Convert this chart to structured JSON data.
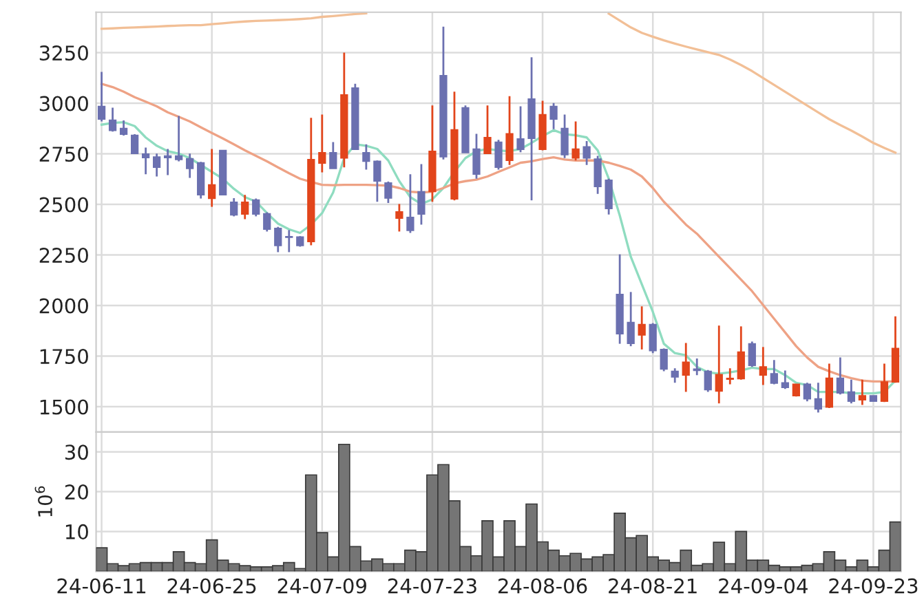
{
  "chart_data": [
    {
      "type": "candlestick",
      "grid": true,
      "ylim": [
        1375,
        3450
      ],
      "yticks": [
        1500,
        1750,
        2000,
        2250,
        2500,
        2750,
        3000,
        3250
      ],
      "categories": [
        null,
        null,
        null,
        null,
        null,
        null,
        null,
        null,
        null,
        null,
        null,
        null,
        null,
        null,
        null,
        null,
        null,
        null,
        null,
        null,
        null,
        null,
        null,
        null,
        null,
        null,
        null,
        null,
        null,
        null,
        null,
        null,
        null,
        null,
        null,
        null,
        null,
        null,
        null,
        null,
        null,
        null,
        null,
        null,
        null,
        null,
        null,
        null,
        null,
        null,
        null,
        null,
        null,
        null,
        null,
        null,
        null,
        null,
        null,
        null,
        null,
        null,
        null,
        null,
        null,
        null,
        null,
        null,
        null,
        null,
        null,
        null,
        null
      ],
      "ohlc": [
        [
          2985,
          3155,
          2910,
          2921
        ],
        [
          2917,
          2978,
          2860,
          2865
        ],
        [
          2876,
          2915,
          2840,
          2847
        ],
        [
          2842,
          2847,
          2749,
          2751
        ],
        [
          2749,
          2781,
          2649,
          2731
        ],
        [
          2735,
          2751,
          2638,
          2683
        ],
        [
          2740,
          2774,
          2645,
          2731
        ],
        [
          2740,
          2937,
          2713,
          2722
        ],
        [
          2726,
          2751,
          2631,
          2677
        ],
        [
          2706,
          2710,
          2529,
          2547
        ],
        [
          2529,
          2774,
          2488,
          2597
        ],
        [
          2767,
          2767,
          2547,
          2547
        ],
        [
          2511,
          2531,
          2441,
          2448
        ],
        [
          2452,
          2547,
          2427,
          2511
        ],
        [
          2522,
          2529,
          2441,
          2452
        ],
        [
          2454,
          2461,
          2366,
          2377
        ],
        [
          2382,
          2389,
          2264,
          2296
        ],
        [
          2341,
          2373,
          2264,
          2337
        ],
        [
          2339,
          2343,
          2291,
          2296
        ],
        [
          2316,
          2928,
          2298,
          2722
        ],
        [
          2704,
          2944,
          2658,
          2756
        ],
        [
          2756,
          2808,
          2677,
          2677
        ],
        [
          2729,
          3250,
          2683,
          3042
        ],
        [
          3076,
          3096,
          2772,
          2772
        ],
        [
          2756,
          2797,
          2672,
          2713
        ],
        [
          2713,
          2717,
          2513,
          2615
        ],
        [
          2606,
          2613,
          2507,
          2531
        ],
        [
          2432,
          2502,
          2366,
          2463
        ],
        [
          2436,
          2649,
          2359,
          2371
        ],
        [
          2563,
          2699,
          2400,
          2452
        ],
        [
          2563,
          2989,
          2513,
          2763
        ],
        [
          3137,
          3379,
          2722,
          2735
        ],
        [
          2527,
          3057,
          2520,
          2869
        ],
        [
          2978,
          2989,
          2756,
          2756
        ],
        [
          2774,
          2849,
          2627,
          2649
        ],
        [
          2751,
          2989,
          2751,
          2831
        ],
        [
          2808,
          2819,
          2672,
          2683
        ],
        [
          2717,
          3035,
          2695,
          2849
        ],
        [
          2824,
          2985,
          2758,
          2772
        ],
        [
          3021,
          3227,
          2520,
          2826
        ],
        [
          2772,
          3012,
          2767,
          2944
        ],
        [
          2985,
          3001,
          2872,
          2921
        ],
        [
          2876,
          2944,
          2729,
          2745
        ],
        [
          2729,
          2910,
          2717,
          2774
        ],
        [
          2785,
          2813,
          2695,
          2729
        ],
        [
          2724,
          2740,
          2552,
          2588
        ],
        [
          2620,
          2627,
          2450,
          2479
        ],
        [
          2055,
          2253,
          1811,
          1860
        ],
        [
          1917,
          2067,
          1799,
          1813
        ],
        [
          1854,
          1996,
          1783,
          1906
        ],
        [
          1906,
          1913,
          1765,
          1777
        ],
        [
          1783,
          1788,
          1675,
          1686
        ],
        [
          1675,
          1690,
          1618,
          1647
        ],
        [
          1656,
          1815,
          1573,
          1720
        ],
        [
          1686,
          1738,
          1656,
          1679
        ],
        [
          1675,
          1681,
          1573,
          1584
        ],
        [
          1577,
          1901,
          1516,
          1659
        ],
        [
          1636,
          1690,
          1611,
          1640
        ],
        [
          1638,
          1897,
          1634,
          1770
        ],
        [
          1811,
          1822,
          1697,
          1704
        ],
        [
          1656,
          1795,
          1607,
          1697
        ],
        [
          1663,
          1731,
          1611,
          1616
        ],
        [
          1618,
          1679,
          1588,
          1595
        ],
        [
          1554,
          1611,
          1550,
          1611
        ],
        [
          1611,
          1618,
          1527,
          1539
        ],
        [
          1539,
          1618,
          1471,
          1489
        ],
        [
          1498,
          1713,
          1493,
          1641
        ],
        [
          1641,
          1743,
          1561,
          1568
        ],
        [
          1573,
          1634,
          1516,
          1527
        ],
        [
          1534,
          1634,
          1509,
          1554
        ],
        [
          1554,
          1554,
          1525,
          1527
        ],
        [
          1527,
          1713,
          1523,
          1622
        ],
        [
          1622,
          1947,
          1618,
          1788
        ]
      ],
      "colors": [
        "#6b70b0",
        "#6b70b0",
        "#6b70b0",
        "#6b70b0",
        "#6b70b0",
        "#6b70b0",
        "#6b70b0",
        "#6b70b0",
        "#6b70b0",
        "#6b70b0",
        "#e2451b",
        "#6b70b0",
        "#6b70b0",
        "#e2451b",
        "#6b70b0",
        "#6b70b0",
        "#6b70b0",
        "#6b70b0",
        "#6b70b0",
        "#e2451b",
        "#e2451b",
        "#6b70b0",
        "#e2451b",
        "#6b70b0",
        "#6b70b0",
        "#6b70b0",
        "#6b70b0",
        "#e2451b",
        "#6b70b0",
        "#6b70b0",
        "#e2451b",
        "#6b70b0",
        "#e2451b",
        "#6b70b0",
        "#6b70b0",
        "#e2451b",
        "#6b70b0",
        "#e2451b",
        "#6b70b0",
        "#6b70b0",
        "#e2451b",
        "#6b70b0",
        "#6b70b0",
        "#e2451b",
        "#6b70b0",
        "#6b70b0",
        "#6b70b0",
        "#6b70b0",
        "#6b70b0",
        "#e2451b",
        "#6b70b0",
        "#6b70b0",
        "#6b70b0",
        "#e2451b",
        "#6b70b0",
        "#6b70b0",
        "#e2451b",
        "#e2451b",
        "#e2451b",
        "#6b70b0",
        "#e2451b",
        "#6b70b0",
        "#6b70b0",
        "#e2451b",
        "#6b70b0",
        "#6b70b0",
        "#e2451b",
        "#6b70b0",
        "#6b70b0",
        "#e2451b",
        "#6b70b0",
        "#e2451b",
        "#e2451b"
      ],
      "series": [
        {
          "type": "line",
          "color": "#8fdcc0",
          "values": [
            2894,
            2903,
            2906,
            2887,
            2831,
            2790,
            2763,
            2751,
            2729,
            2695,
            2661,
            2627,
            2577,
            2536,
            2514,
            2457,
            2405,
            2377,
            2359,
            2400,
            2457,
            2559,
            2729,
            2797,
            2790,
            2774,
            2717,
            2615,
            2536,
            2502,
            2525,
            2581,
            2661,
            2729,
            2763,
            2774,
            2767,
            2763,
            2774,
            2804,
            2838,
            2867,
            2847,
            2842,
            2831,
            2767,
            2627,
            2445,
            2241,
            2105,
            1969,
            1811,
            1765,
            1754,
            1697,
            1670,
            1663,
            1670,
            1679,
            1693,
            1686,
            1686,
            1656,
            1618,
            1607,
            1573,
            1573,
            1573,
            1566,
            1566,
            1566,
            1573,
            1629
          ]
        },
        {
          "type": "line",
          "color": "#eea285",
          "values": [
            3096,
            3080,
            3057,
            3030,
            3008,
            2985,
            2955,
            2933,
            2910,
            2881,
            2853,
            2826,
            2797,
            2767,
            2740,
            2713,
            2683,
            2654,
            2627,
            2611,
            2597,
            2595,
            2597,
            2597,
            2597,
            2595,
            2593,
            2581,
            2563,
            2559,
            2563,
            2581,
            2604,
            2615,
            2622,
            2638,
            2661,
            2683,
            2706,
            2713,
            2724,
            2733,
            2722,
            2717,
            2717,
            2717,
            2706,
            2690,
            2672,
            2638,
            2581,
            2513,
            2457,
            2400,
            2355,
            2298,
            2241,
            2185,
            2128,
            2071,
            2003,
            1935,
            1867,
            1799,
            1743,
            1697,
            1675,
            1656,
            1641,
            1629,
            1625,
            1625,
            1625
          ]
        },
        {
          "type": "line",
          "color": "#f2bf96",
          "values": [
            3368,
            3370,
            3373,
            3375,
            3377,
            3379,
            3382,
            3384,
            3386,
            3386,
            3391,
            3395,
            3400,
            3404,
            3407,
            3409,
            3411,
            3413,
            3416,
            3420,
            3427,
            3431,
            3436,
            3441,
            3445,
            null,
            null,
            null,
            null,
            null,
            null,
            null,
            null,
            null,
            null,
            null,
            null,
            null,
            null,
            null,
            null,
            null,
            null,
            null,
            null,
            null,
            3443,
            3409,
            3375,
            3348,
            3329,
            3311,
            3295,
            3280,
            3266,
            3252,
            3239,
            3216,
            3189,
            3159,
            3125,
            3091,
            3057,
            3023,
            2989,
            2955,
            2921,
            2892,
            2865,
            2835,
            2804,
            2779,
            2756
          ]
        }
      ]
    },
    {
      "type": "bar",
      "grid": true,
      "ylabel": "10$^{6}$",
      "ylim": [
        0,
        35
      ],
      "yticks": [
        10,
        20,
        30
      ],
      "color": "#757575",
      "categories": [
        "24-06-11",
        null,
        null,
        null,
        null,
        null,
        null,
        null,
        null,
        null,
        "24-06-25",
        null,
        null,
        null,
        null,
        null,
        null,
        null,
        null,
        null,
        "24-07-09",
        null,
        null,
        null,
        null,
        null,
        null,
        null,
        null,
        null,
        "24-07-23",
        null,
        null,
        null,
        null,
        null,
        null,
        null,
        null,
        null,
        "24-08-06",
        null,
        null,
        null,
        null,
        null,
        null,
        null,
        null,
        null,
        "24-08-21",
        null,
        null,
        null,
        null,
        null,
        null,
        null,
        null,
        null,
        "24-09-04",
        null,
        null,
        null,
        null,
        null,
        null,
        null,
        null,
        null,
        "24-09-23",
        null,
        null
      ],
      "values": [
        5.9,
        1.9,
        1.4,
        1.9,
        2.2,
        2.2,
        2.2,
        4.9,
        2.2,
        1.9,
        7.9,
        2.8,
        1.9,
        1.4,
        1.1,
        1.1,
        1.4,
        2.2,
        0.7,
        24.2,
        9.7,
        3.6,
        31.9,
        6.2,
        2.6,
        3.1,
        1.9,
        1.9,
        5.3,
        4.9,
        24.2,
        26.8,
        17.7,
        6.2,
        3.9,
        12.7,
        3.6,
        12.7,
        6.2,
        16.9,
        7.4,
        5.3,
        3.9,
        4.5,
        3.1,
        3.6,
        4.2,
        14.6,
        8.4,
        9.0,
        3.6,
        2.8,
        2.2,
        5.3,
        1.5,
        1.9,
        7.3,
        1.9,
        10.0,
        2.8,
        2.8,
        1.5,
        1.1,
        1.1,
        1.5,
        1.9,
        4.9,
        2.8,
        1.1,
        2.8,
        1.1,
        5.3,
        12.4
      ]
    }
  ]
}
